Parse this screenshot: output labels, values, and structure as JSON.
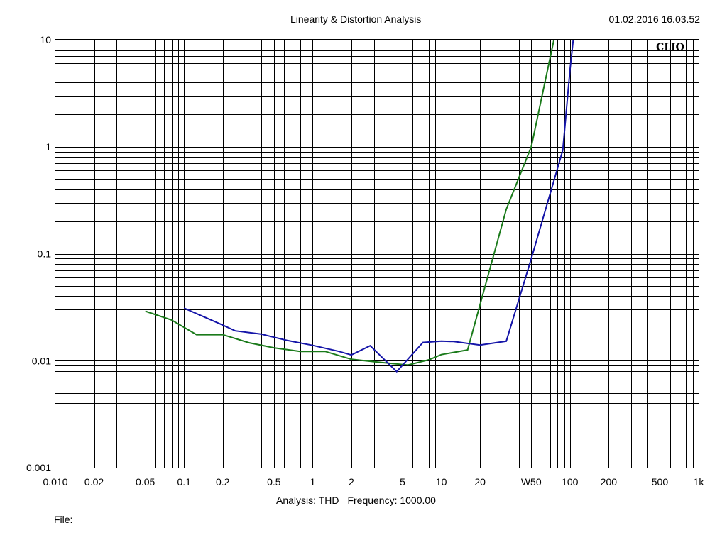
{
  "header": {
    "title": "Linearity & Distortion Analysis",
    "timestamp": "01.02.2016 16.03.52"
  },
  "footer": {
    "analysis_label": "Analysis: THD",
    "frequency_label": "Frequency: 1000.00",
    "file_label": "File:"
  },
  "chart_data": {
    "type": "line",
    "brand_label": "CLIO",
    "x_scale": "log",
    "y_scale": "log",
    "xlim": [
      0.01,
      1000
    ],
    "ylim": [
      0.001,
      10
    ],
    "grid": true,
    "x_tick_labels": [
      {
        "value": 0.01,
        "label": "0.010"
      },
      {
        "value": 0.02,
        "label": "0.02"
      },
      {
        "value": 0.05,
        "label": "0.05"
      },
      {
        "value": 0.1,
        "label": "0.1"
      },
      {
        "value": 0.2,
        "label": "0.2"
      },
      {
        "value": 0.5,
        "label": "0.5"
      },
      {
        "value": 1,
        "label": "1"
      },
      {
        "value": 2,
        "label": "2"
      },
      {
        "value": 5,
        "label": "5"
      },
      {
        "value": 10,
        "label": "10"
      },
      {
        "value": 20,
        "label": "20"
      },
      {
        "value": 50,
        "label": "W50"
      },
      {
        "value": 100,
        "label": "100"
      },
      {
        "value": 200,
        "label": "200"
      },
      {
        "value": 500,
        "label": "500"
      },
      {
        "value": 1000,
        "label": "1k"
      }
    ],
    "y_tick_labels": [
      {
        "value": 10,
        "label": "10"
      },
      {
        "value": 1,
        "label": "1"
      },
      {
        "value": 0.1,
        "label": "0.1"
      },
      {
        "value": 0.01,
        "label": "0.01"
      },
      {
        "value": 0.001,
        "label": "0.001"
      }
    ],
    "series": [
      {
        "color": "#1a7a1a",
        "points": [
          [
            0.05,
            0.029
          ],
          [
            0.08,
            0.024
          ],
          [
            0.125,
            0.0175
          ],
          [
            0.2,
            0.0175
          ],
          [
            0.32,
            0.0147
          ],
          [
            0.5,
            0.0132
          ],
          [
            0.8,
            0.0122
          ],
          [
            1.25,
            0.0122
          ],
          [
            2,
            0.0103
          ],
          [
            3.2,
            0.0097
          ],
          [
            5.5,
            0.0091
          ],
          [
            8,
            0.0102
          ],
          [
            10,
            0.0114
          ],
          [
            16,
            0.0126
          ],
          [
            32,
            0.26
          ],
          [
            50,
            1.0
          ],
          [
            75,
            10
          ]
        ]
      },
      {
        "color": "#1515a8",
        "points": [
          [
            0.1,
            0.031
          ],
          [
            0.2,
            0.0215
          ],
          [
            0.25,
            0.019
          ],
          [
            0.4,
            0.0177
          ],
          [
            0.63,
            0.0155
          ],
          [
            1,
            0.0139
          ],
          [
            1.6,
            0.0122
          ],
          [
            2,
            0.0113
          ],
          [
            2.8,
            0.0138
          ],
          [
            4.5,
            0.0079
          ],
          [
            7.2,
            0.0148
          ],
          [
            10,
            0.0152
          ],
          [
            12.5,
            0.0151
          ],
          [
            20,
            0.014
          ],
          [
            32,
            0.0152
          ],
          [
            50,
            0.09
          ],
          [
            88,
            0.93
          ],
          [
            100,
            5.2
          ],
          [
            106,
            10
          ]
        ]
      }
    ]
  }
}
